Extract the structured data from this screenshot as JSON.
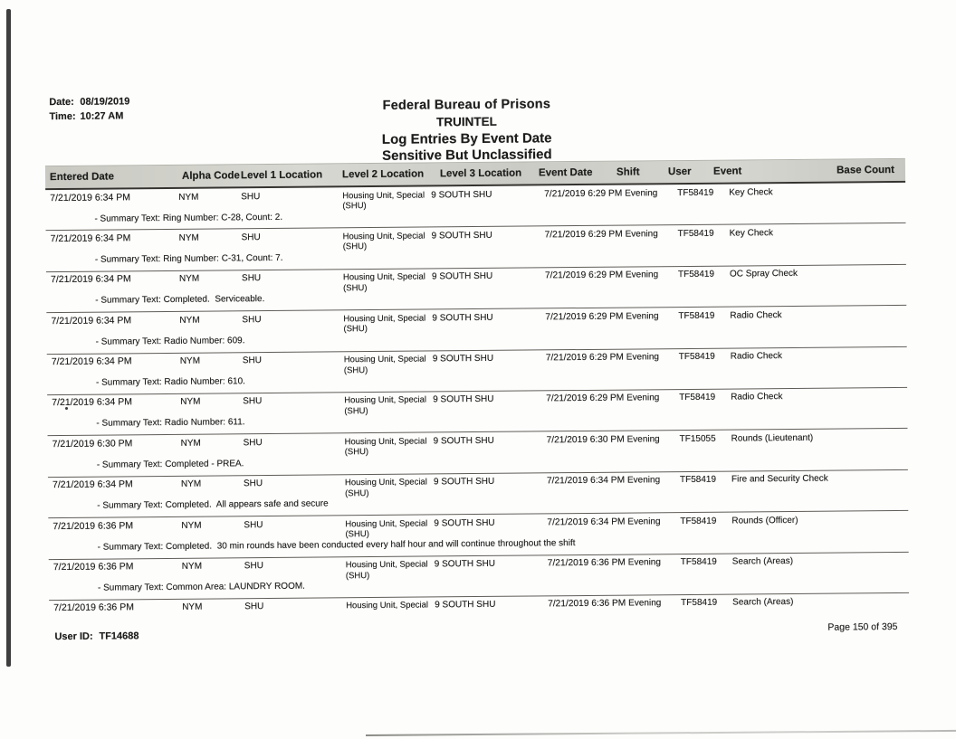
{
  "report": {
    "printed_date_label": "Date:",
    "printed_date": "08/19/2019",
    "printed_time_label": "Time:",
    "printed_time": "10:27 AM",
    "title_line1": "Federal Bureau of Prisons",
    "title_line2": "TRUINTEL",
    "title_line3": "Log Entries By Event Date",
    "title_line4": "Sensitive But Unclassified",
    "footer_user_id_label": "User ID:",
    "footer_user_id": "TF14688",
    "footer_page": "Page 150 of 395"
  },
  "colors": {
    "header_band": "#cfcfc9",
    "text": "#1d1d1c",
    "rule_line": "#5f5c57"
  },
  "table": {
    "columns": [
      "Entered Date",
      "Alpha Code",
      "Level 1 Location",
      "Level 2 Location",
      "Level 3 Location",
      "Event Date",
      "Shift",
      "User",
      "Event",
      "Base Count"
    ],
    "rows": [
      {
        "entered_date": "7/21/2019 6:34 PM",
        "alpha_code": "NYM",
        "level1_location": "SHU",
        "level2_line1": "Housing Unit, Special",
        "level2_line2": "(SHU)",
        "level3_location": "9 SOUTH SHU",
        "event_date": "7/21/2019 6:29 PM",
        "shift": "Evening",
        "user": "TF58419",
        "event": "Key Check",
        "base_count": "",
        "summary": "- Summary Text: Ring Number: C-28, Count: 2."
      },
      {
        "entered_date": "7/21/2019 6:34 PM",
        "alpha_code": "NYM",
        "level1_location": "SHU",
        "level2_line1": "Housing Unit, Special",
        "level2_line2": "(SHU)",
        "level3_location": "9 SOUTH SHU",
        "event_date": "7/21/2019 6:29 PM",
        "shift": "Evening",
        "user": "TF58419",
        "event": "Key Check",
        "base_count": "",
        "summary": "- Summary Text: Ring Number: C-31, Count: 7."
      },
      {
        "entered_date": "7/21/2019 6:34 PM",
        "alpha_code": "NYM",
        "level1_location": "SHU",
        "level2_line1": "Housing Unit, Special",
        "level2_line2": "(SHU)",
        "level3_location": "9 SOUTH SHU",
        "event_date": "7/21/2019 6:29 PM",
        "shift": "Evening",
        "user": "TF58419",
        "event": "OC Spray Check",
        "base_count": "",
        "summary": "- Summary Text: Completed.  Serviceable."
      },
      {
        "entered_date": "7/21/2019 6:34 PM",
        "alpha_code": "NYM",
        "level1_location": "SHU",
        "level2_line1": "Housing Unit, Special",
        "level2_line2": "(SHU)",
        "level3_location": "9 SOUTH SHU",
        "event_date": "7/21/2019 6:29 PM",
        "shift": "Evening",
        "user": "TF58419",
        "event": "Radio Check",
        "base_count": "",
        "summary": "- Summary Text: Radio Number: 609."
      },
      {
        "entered_date": "7/21/2019 6:34 PM",
        "alpha_code": "NYM",
        "level1_location": "SHU",
        "level2_line1": "Housing Unit, Special",
        "level2_line2": "(SHU)",
        "level3_location": "9 SOUTH SHU",
        "event_date": "7/21/2019 6:29 PM",
        "shift": "Evening",
        "user": "TF58419",
        "event": "Radio Check",
        "base_count": "",
        "summary": "- Summary Text: Radio Number: 610."
      },
      {
        "entered_date": "7/21/2019 6:34 PM",
        "alpha_code": "NYM",
        "level1_location": "SHU",
        "level2_line1": "Housing Unit, Special",
        "level2_line2": "(SHU)",
        "level3_location": "9 SOUTH SHU",
        "event_date": "7/21/2019 6:29 PM",
        "shift": "Evening",
        "user": "TF58419",
        "event": "Radio Check",
        "base_count": "",
        "summary": "- Summary Text: Radio Number: 611."
      },
      {
        "entered_date": "7/21/2019 6:30 PM",
        "alpha_code": "NYM",
        "level1_location": "SHU",
        "level2_line1": "Housing Unit, Special",
        "level2_line2": "(SHU)",
        "level3_location": "9 SOUTH SHU",
        "event_date": "7/21/2019 6:30 PM",
        "shift": "Evening",
        "user": "TF15055",
        "event": "Rounds (Lieutenant)",
        "base_count": "",
        "summary": "- Summary Text: Completed - PREA."
      },
      {
        "entered_date": "7/21/2019 6:34 PM",
        "alpha_code": "NYM",
        "level1_location": "SHU",
        "level2_line1": "Housing Unit, Special",
        "level2_line2": "(SHU)",
        "level3_location": "9 SOUTH SHU",
        "event_date": "7/21/2019 6:34 PM",
        "shift": "Evening",
        "user": "TF58419",
        "event": "Fire and Security Check",
        "base_count": "",
        "summary": "- Summary Text: Completed.  All appears safe and secure"
      },
      {
        "entered_date": "7/21/2019 6:36 PM",
        "alpha_code": "NYM",
        "level1_location": "SHU",
        "level2_line1": "Housing Unit, Special",
        "level2_line2": "(SHU)",
        "level3_location": "9 SOUTH SHU",
        "event_date": "7/21/2019 6:34 PM",
        "shift": "Evening",
        "user": "TF58419",
        "event": "Rounds (Officer)",
        "base_count": "",
        "summary": "- Summary Text: Completed.  30 min rounds have been conducted every half hour and will continue throughout the shift"
      },
      {
        "entered_date": "7/21/2019 6:36 PM",
        "alpha_code": "NYM",
        "level1_location": "SHU",
        "level2_line1": "Housing Unit, Special",
        "level2_line2": "(SHU)",
        "level3_location": "9 SOUTH SHU",
        "event_date": "7/21/2019 6:36 PM",
        "shift": "Evening",
        "user": "TF58419",
        "event": "Search (Areas)",
        "base_count": "",
        "summary": "- Summary Text: Common Area: LAUNDRY ROOM."
      },
      {
        "entered_date": "7/21/2019 6:36 PM",
        "alpha_code": "NYM",
        "level1_location": "SHU",
        "level2_line1": "Housing Unit, Special",
        "level2_line2": "",
        "level3_location": "9 SOUTH SHU",
        "event_date": "7/21/2019 6:36 PM",
        "shift": "Evening",
        "user": "TF58419",
        "event": "Search (Areas)",
        "base_count": "",
        "summary": null
      }
    ]
  }
}
